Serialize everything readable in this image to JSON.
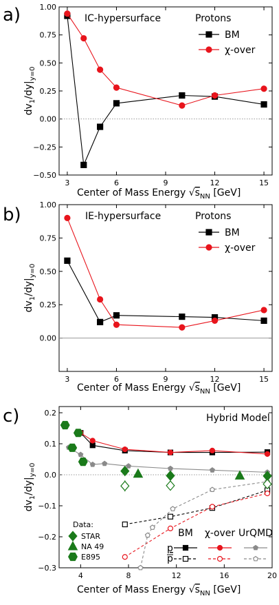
{
  "chart_data": [
    {
      "type": "line",
      "panel_label": "a)",
      "annotation": "IC-hypersurface",
      "legend_title": "Protons",
      "xlabel": "Center of Mass Energy √s_NN [GeV]",
      "xlabel_parts": {
        "main": "Center of Mass Energy ",
        "sqrt": "√",
        "s": "s",
        "sub": "NN",
        "unit": " [GeV]"
      },
      "ylabel_parts": {
        "d": "dv",
        "sub1": "1",
        "rest": "/dy|",
        "sub2": "y=0"
      },
      "xlim": [
        2.5,
        15.5
      ],
      "ylim": [
        -0.5,
        1.0
      ],
      "xticks": [
        3,
        6,
        9,
        12,
        15
      ],
      "xtick_labels": [
        "3",
        "6",
        "9",
        "12",
        "15"
      ],
      "yticks": [
        -0.5,
        -0.25,
        0.0,
        0.25,
        0.5,
        0.75,
        1.0
      ],
      "ytick_labels": [
        "−0.50",
        "−0.25",
        "0.00",
        "0.25",
        "0.50",
        "0.75",
        "1.00"
      ],
      "legend_placement": "top-right",
      "series": [
        {
          "name": "BM",
          "marker": "square",
          "color": "#000000",
          "x": [
            3,
            4,
            5,
            6,
            10,
            12,
            15
          ],
          "y": [
            0.92,
            -0.41,
            -0.07,
            0.14,
            0.21,
            0.2,
            0.13
          ]
        },
        {
          "name": "χ-over",
          "marker": "circle",
          "color": "#e8141c",
          "x": [
            3,
            4,
            5,
            6,
            10,
            12,
            15
          ],
          "y": [
            0.94,
            0.72,
            0.44,
            0.28,
            0.12,
            0.21,
            0.27
          ]
        }
      ]
    },
    {
      "type": "line",
      "panel_label": "b)",
      "annotation": "IE-hypersurface",
      "legend_title": "Protons",
      "xlabel": "Center of Mass Energy √s_NN [GeV]",
      "xlim": [
        2.5,
        15.5
      ],
      "ylim": [
        -0.25,
        1.0
      ],
      "xticks": [
        3,
        6,
        9,
        12,
        15
      ],
      "xtick_labels": [
        "3",
        "6",
        "9",
        "12",
        "15"
      ],
      "yticks": [
        0.0,
        0.25,
        0.5,
        0.75,
        1.0
      ],
      "ytick_labels": [
        "0.00",
        "0.25",
        "0.50",
        "0.75",
        "1.00"
      ],
      "legend_placement": "top-right",
      "series": [
        {
          "name": "BM",
          "marker": "square",
          "color": "#000000",
          "x": [
            3,
            5,
            6,
            10,
            12,
            15
          ],
          "y": [
            0.58,
            0.12,
            0.17,
            0.16,
            0.155,
            0.13
          ]
        },
        {
          "name": "χ-over",
          "marker": "circle",
          "color": "#e8141c",
          "x": [
            3,
            5,
            6,
            10,
            12,
            15
          ],
          "y": [
            0.9,
            0.29,
            0.1,
            0.08,
            0.13,
            0.21
          ]
        }
      ]
    },
    {
      "type": "line",
      "panel_label": "c)",
      "annotation": "Hybrid Model",
      "xlabel": "Center of Mass Energy √s_NN [GeV]",
      "xlim": [
        2.2,
        20
      ],
      "ylim": [
        -0.3,
        0.22
      ],
      "xticks": [
        4,
        8,
        12,
        16,
        20
      ],
      "xtick_labels": [
        "4",
        "8",
        "12",
        "16",
        "20"
      ],
      "yticks": [
        -0.3,
        -0.2,
        -0.1,
        0.0,
        0.1,
        0.2
      ],
      "ytick_labels": [
        "−0.3",
        "−0.2",
        "−0.1",
        "0.0",
        "0.1",
        "0.2"
      ],
      "data_legend_title": "Data:",
      "model_legend": {
        "headers": [
          "BM",
          "χ-over",
          "UrQMD"
        ],
        "row_p": "p",
        "row_pbar": "p"
      },
      "series": [
        {
          "name": "BM p",
          "marker": "square",
          "color": "#000000",
          "fill": true,
          "x": [
            4,
            5,
            7.7,
            11.5,
            15,
            19.6
          ],
          "y": [
            0.135,
            0.095,
            0.078,
            0.072,
            0.072,
            0.073
          ]
        },
        {
          "name": "χ-over p",
          "marker": "circle",
          "color": "#e8141c",
          "fill": true,
          "x": [
            4,
            5,
            7.7,
            11.5,
            15,
            19.6
          ],
          "y": [
            0.135,
            0.11,
            0.082,
            0.072,
            0.078,
            0.067
          ]
        },
        {
          "name": "UrQMD p",
          "marker": "pentagon",
          "color": "#8a8a8a",
          "fill": true,
          "x": [
            3,
            4,
            5,
            6,
            8,
            11.5,
            15,
            19.6
          ],
          "y": [
            0.088,
            0.065,
            0.033,
            0.036,
            0.028,
            0.02,
            0.015,
            0.008
          ]
        },
        {
          "name": "BM pbar",
          "marker": "square",
          "color": "#000000",
          "fill": false,
          "dashed": true,
          "x": [
            7.7,
            11.5,
            15,
            19.6
          ],
          "y": [
            -0.16,
            -0.135,
            -0.107,
            -0.05
          ]
        },
        {
          "name": "χ-over pbar",
          "marker": "circle",
          "color": "#e8141c",
          "fill": false,
          "dashed": true,
          "x": [
            7.7,
            11.5,
            15,
            19.6
          ],
          "y": [
            -0.265,
            -0.173,
            -0.103,
            -0.06
          ]
        },
        {
          "name": "UrQMD pbar",
          "marker": "pentagon",
          "color": "#8a8a8a",
          "fill": false,
          "dashed": true,
          "x": [
            9,
            9.6,
            10,
            11.7,
            15,
            19.6
          ],
          "y": [
            -0.3,
            -0.195,
            -0.17,
            -0.11,
            -0.048,
            -0.022
          ]
        }
      ],
      "data_points": [
        {
          "name": "STAR",
          "marker": "diamond",
          "fill": true,
          "x": [
            7.7,
            11.5,
            19.6
          ],
          "y": [
            0.012,
            -0.003,
            -0.004
          ],
          "err": [
            0.008,
            0.006,
            0.005
          ]
        },
        {
          "name": "STAR pbar",
          "marker": "diamond",
          "fill": false,
          "x": [
            7.7,
            11.5,
            19.6
          ],
          "y": [
            -0.036,
            -0.035,
            -0.03
          ],
          "err": [
            0.018,
            0.01,
            0.006
          ]
        },
        {
          "name": "NA 49",
          "marker": "triangle",
          "fill": true,
          "x": [
            8.8,
            17.3
          ],
          "y": [
            0.003,
            -0.003
          ],
          "err": [
            0.006,
            0.004
          ]
        },
        {
          "name": "E895",
          "marker": "hexagon",
          "fill": true,
          "x": [
            2.7,
            3.3,
            3.8,
            4.2
          ],
          "y": [
            0.16,
            0.087,
            0.135,
            0.042
          ],
          "err": [
            0,
            0,
            0,
            0
          ]
        }
      ]
    }
  ]
}
